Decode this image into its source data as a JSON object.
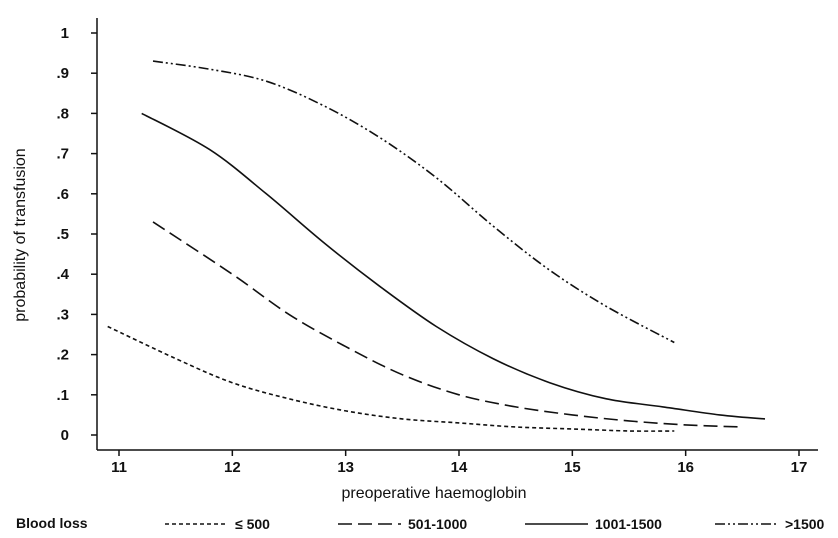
{
  "chart_data": {
    "type": "line",
    "xlabel": "preoperative haemoglobin",
    "ylabel": "probability of transfusion",
    "xlim": [
      10.8,
      17.2
    ],
    "ylim": [
      0,
      1
    ],
    "x_ticks": [
      {
        "value": 11,
        "label": "11"
      },
      {
        "value": 12,
        "label": "12"
      },
      {
        "value": 13,
        "label": "13"
      },
      {
        "value": 14,
        "label": "14"
      },
      {
        "value": 15,
        "label": "15"
      },
      {
        "value": 16,
        "label": "16"
      },
      {
        "value": 17,
        "label": "17"
      }
    ],
    "y_ticks": [
      {
        "value": 0,
        "label": "0"
      },
      {
        "value": 0.1,
        "label": ".1"
      },
      {
        "value": 0.2,
        "label": ".2"
      },
      {
        "value": 0.3,
        "label": ".3"
      },
      {
        "value": 0.4,
        "label": ".4"
      },
      {
        "value": 0.5,
        "label": ".5"
      },
      {
        "value": 0.6,
        "label": ".6"
      },
      {
        "value": 0.7,
        "label": ".7"
      },
      {
        "value": 0.8,
        "label": ".8"
      },
      {
        "value": 0.9,
        "label": ".9"
      },
      {
        "value": 1,
        "label": "1"
      }
    ],
    "grid": false,
    "legend": {
      "title": "Blood loss",
      "placement": "bottom",
      "entries": [
        "≤ 500",
        "501-1000",
        "1001-1500",
        ">1500"
      ]
    },
    "series": [
      {
        "name": "≤ 500",
        "dash": "4 3",
        "x": [
          10.9,
          11.5,
          12.0,
          12.5,
          13.0,
          13.5,
          14.0,
          14.5,
          15.0,
          15.5,
          15.9
        ],
        "y": [
          0.27,
          0.19,
          0.13,
          0.09,
          0.06,
          0.04,
          0.03,
          0.02,
          0.015,
          0.01,
          0.01
        ]
      },
      {
        "name": "501-1000",
        "dash": "14 6",
        "x": [
          11.3,
          12.0,
          12.5,
          13.0,
          13.5,
          14.0,
          14.5,
          15.0,
          15.5,
          16.0,
          16.5
        ],
        "y": [
          0.53,
          0.4,
          0.3,
          0.22,
          0.15,
          0.1,
          0.07,
          0.05,
          0.035,
          0.025,
          0.02
        ]
      },
      {
        "name": "1001-1500",
        "dash": "",
        "x": [
          11.2,
          11.8,
          12.3,
          12.8,
          13.3,
          13.8,
          14.3,
          14.8,
          15.3,
          15.8,
          16.3,
          16.7
        ],
        "y": [
          0.8,
          0.71,
          0.6,
          0.48,
          0.37,
          0.27,
          0.19,
          0.13,
          0.09,
          0.07,
          0.05,
          0.04
        ]
      },
      {
        "name": ">1500",
        "dash": "10 3 2 3 2 3",
        "x": [
          11.3,
          11.8,
          12.3,
          12.8,
          13.3,
          13.8,
          14.3,
          14.8,
          15.3,
          15.9
        ],
        "y": [
          0.93,
          0.91,
          0.88,
          0.82,
          0.74,
          0.64,
          0.52,
          0.41,
          0.32,
          0.23
        ]
      }
    ]
  }
}
